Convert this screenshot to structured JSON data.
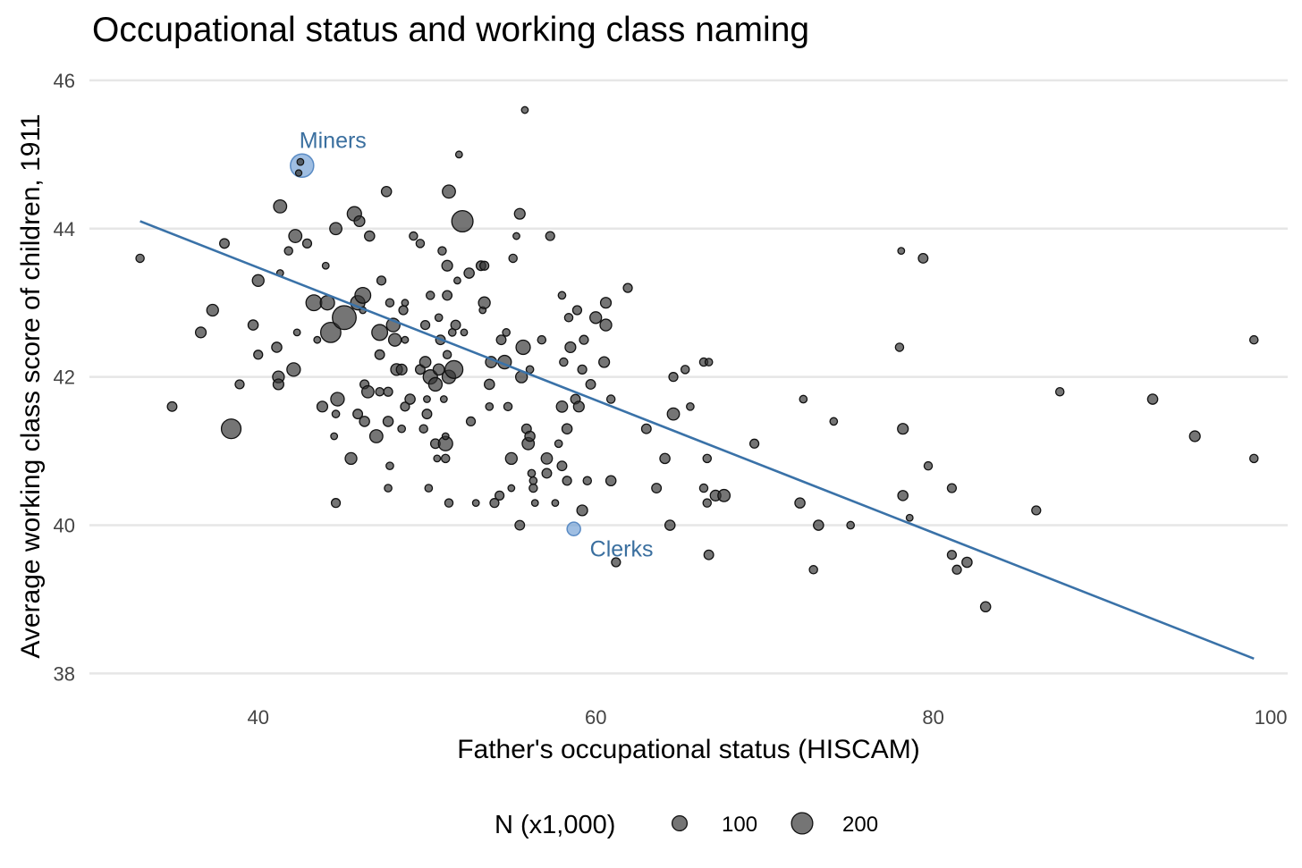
{
  "chart_data": {
    "type": "scatter",
    "title": "Occupational status and working class naming",
    "xlabel": "Father's occupational status (HISCAM)",
    "ylabel": "Average working class score of children, 1911",
    "xlim": [
      30,
      101
    ],
    "ylim": [
      37.8,
      46.3
    ],
    "x_ticks": [
      40,
      60,
      80,
      100
    ],
    "y_ticks": [
      38,
      40,
      42,
      44,
      46
    ],
    "grid": "horizontal major lines only",
    "point_color": "#333333",
    "highlight_color": "#6b9bd2",
    "line_color": "#3a72a8",
    "fit_line": {
      "x": [
        33,
        99
      ],
      "y": [
        44.1,
        38.2
      ]
    },
    "legend": {
      "title": "N (x1,000)",
      "placement": "bottom",
      "entries": [
        {
          "label": "100",
          "n": 100
        },
        {
          "label": "200",
          "n": 200
        }
      ]
    },
    "highlighted": [
      {
        "label": "Miners",
        "x": 42.6,
        "y": 44.85,
        "n": 240
      },
      {
        "label": "Clerks",
        "x": 58.7,
        "y": 39.95,
        "n": 80
      }
    ],
    "points": [
      [
        33.0,
        43.6,
        30
      ],
      [
        34.9,
        41.6,
        40
      ],
      [
        36.6,
        42.6,
        50
      ],
      [
        37.3,
        42.9,
        60
      ],
      [
        38.0,
        43.8,
        40
      ],
      [
        38.4,
        41.3,
        170
      ],
      [
        38.9,
        41.9,
        35
      ],
      [
        39.7,
        42.7,
        45
      ],
      [
        40.0,
        43.3,
        60
      ],
      [
        40.0,
        42.3,
        35
      ],
      [
        41.1,
        42.4,
        45
      ],
      [
        41.2,
        42.0,
        60
      ],
      [
        41.2,
        41.9,
        50
      ],
      [
        41.3,
        44.3,
        75
      ],
      [
        41.3,
        43.4,
        20
      ],
      [
        41.8,
        43.7,
        30
      ],
      [
        42.1,
        42.1,
        80
      ],
      [
        42.2,
        43.9,
        75
      ],
      [
        42.3,
        42.6,
        20
      ],
      [
        42.9,
        43.8,
        35
      ],
      [
        43.3,
        43.0,
        110
      ],
      [
        43.5,
        42.5,
        20
      ],
      [
        43.8,
        41.6,
        50
      ],
      [
        44.0,
        43.5,
        20
      ],
      [
        44.1,
        43.0,
        90
      ],
      [
        44.3,
        42.6,
        180
      ],
      [
        44.5,
        41.2,
        20
      ],
      [
        44.6,
        41.5,
        25
      ],
      [
        44.6,
        40.3,
        35
      ],
      [
        44.6,
        44.0,
        65
      ],
      [
        44.7,
        41.7,
        80
      ],
      [
        45.1,
        42.8,
        250
      ],
      [
        45.5,
        40.9,
        60
      ],
      [
        45.7,
        44.2,
        90
      ],
      [
        45.9,
        41.5,
        40
      ],
      [
        45.9,
        43.0,
        90
      ],
      [
        46.0,
        44.1,
        50
      ],
      [
        46.2,
        43.1,
        110
      ],
      [
        46.2,
        42.9,
        20
      ],
      [
        46.3,
        41.4,
        45
      ],
      [
        46.3,
        41.9,
        35
      ],
      [
        46.5,
        41.8,
        65
      ],
      [
        46.6,
        43.9,
        45
      ],
      [
        47.0,
        41.2,
        75
      ],
      [
        47.2,
        42.6,
        110
      ],
      [
        47.2,
        42.3,
        40
      ],
      [
        47.2,
        41.8,
        30
      ],
      [
        47.3,
        43.3,
        35
      ],
      [
        47.6,
        44.5,
        45
      ],
      [
        47.7,
        41.8,
        35
      ],
      [
        47.7,
        40.5,
        25
      ],
      [
        47.7,
        41.4,
        45
      ],
      [
        47.8,
        43.0,
        30
      ],
      [
        47.8,
        40.8,
        25
      ],
      [
        48.0,
        42.7,
        80
      ],
      [
        48.1,
        42.5,
        70
      ],
      [
        48.2,
        42.1,
        60
      ],
      [
        48.5,
        42.1,
        50
      ],
      [
        48.5,
        41.3,
        25
      ],
      [
        48.6,
        42.9,
        35
      ],
      [
        48.7,
        43.0,
        20
      ],
      [
        48.7,
        42.5,
        20
      ],
      [
        48.7,
        41.6,
        35
      ],
      [
        49.0,
        41.7,
        45
      ],
      [
        49.2,
        43.9,
        30
      ],
      [
        49.6,
        42.1,
        40
      ],
      [
        49.6,
        43.8,
        30
      ],
      [
        49.8,
        41.3,
        30
      ],
      [
        49.9,
        42.2,
        55
      ],
      [
        49.9,
        42.7,
        35
      ],
      [
        50.0,
        41.5,
        40
      ],
      [
        50.0,
        41.7,
        20
      ],
      [
        50.1,
        40.5,
        25
      ],
      [
        50.2,
        42.0,
        90
      ],
      [
        50.2,
        43.1,
        30
      ],
      [
        50.5,
        41.9,
        80
      ],
      [
        50.5,
        41.1,
        40
      ],
      [
        50.6,
        40.9,
        20
      ],
      [
        50.7,
        42.1,
        55
      ],
      [
        50.7,
        42.8,
        25
      ],
      [
        50.8,
        42.5,
        40
      ],
      [
        50.9,
        43.7,
        30
      ],
      [
        51.0,
        41.7,
        20
      ],
      [
        51.1,
        41.1,
        90
      ],
      [
        51.1,
        40.9,
        30
      ],
      [
        51.1,
        41.2,
        20
      ],
      [
        51.2,
        43.5,
        50
      ],
      [
        51.2,
        43.1,
        40
      ],
      [
        51.2,
        42.3,
        30
      ],
      [
        51.3,
        42.0,
        80
      ],
      [
        51.3,
        44.5,
        75
      ],
      [
        51.3,
        40.3,
        30
      ],
      [
        51.5,
        42.6,
        25
      ],
      [
        51.6,
        42.1,
        140
      ],
      [
        51.7,
        42.7,
        40
      ],
      [
        51.8,
        43.3,
        20
      ],
      [
        51.9,
        45.0,
        20
      ],
      [
        52.1,
        44.1,
        200
      ],
      [
        52.2,
        42.6,
        20
      ],
      [
        52.5,
        43.4,
        45
      ],
      [
        52.6,
        41.4,
        35
      ],
      [
        52.9,
        40.3,
        20
      ],
      [
        53.2,
        43.5,
        40
      ],
      [
        53.3,
        42.9,
        20
      ],
      [
        53.4,
        43.0,
        60
      ],
      [
        53.4,
        43.5,
        35
      ],
      [
        53.7,
        41.9,
        45
      ],
      [
        53.7,
        41.6,
        25
      ],
      [
        53.8,
        42.2,
        55
      ],
      [
        54.0,
        40.3,
        35
      ],
      [
        54.3,
        40.4,
        35
      ],
      [
        54.4,
        42.5,
        40
      ],
      [
        54.6,
        42.2,
        80
      ],
      [
        54.7,
        42.6,
        25
      ],
      [
        54.8,
        41.6,
        30
      ],
      [
        55.0,
        40.9,
        60
      ],
      [
        55.0,
        40.5,
        20
      ],
      [
        55.1,
        43.6,
        30
      ],
      [
        55.3,
        43.9,
        20
      ],
      [
        55.5,
        44.2,
        50
      ],
      [
        55.5,
        40.0,
        40
      ],
      [
        55.6,
        42.0,
        60
      ],
      [
        55.7,
        42.4,
        90
      ],
      [
        55.8,
        45.6,
        20
      ],
      [
        55.9,
        41.3,
        40
      ],
      [
        56.0,
        41.1,
        65
      ],
      [
        56.1,
        41.2,
        45
      ],
      [
        56.1,
        42.1,
        25
      ],
      [
        56.2,
        40.7,
        25
      ],
      [
        56.3,
        40.6,
        25
      ],
      [
        56.3,
        40.5,
        30
      ],
      [
        56.4,
        40.3,
        20
      ],
      [
        56.8,
        42.5,
        30
      ],
      [
        57.1,
        40.9,
        55
      ],
      [
        57.1,
        40.7,
        40
      ],
      [
        57.3,
        43.9,
        35
      ],
      [
        57.6,
        40.3,
        20
      ],
      [
        57.8,
        41.1,
        25
      ],
      [
        58.0,
        41.6,
        55
      ],
      [
        58.0,
        43.1,
        25
      ],
      [
        58.0,
        40.8,
        40
      ],
      [
        58.1,
        42.2,
        30
      ],
      [
        58.3,
        41.3,
        45
      ],
      [
        58.3,
        40.6,
        35
      ],
      [
        58.4,
        42.8,
        30
      ],
      [
        58.5,
        42.4,
        50
      ],
      [
        58.8,
        41.7,
        40
      ],
      [
        58.9,
        42.9,
        35
      ],
      [
        59.0,
        41.6,
        50
      ],
      [
        59.2,
        42.1,
        35
      ],
      [
        59.2,
        40.2,
        50
      ],
      [
        59.3,
        42.5,
        35
      ],
      [
        59.5,
        40.6,
        30
      ],
      [
        59.7,
        41.9,
        40
      ],
      [
        60.0,
        42.8,
        60
      ],
      [
        60.5,
        42.2,
        50
      ],
      [
        60.6,
        42.7,
        60
      ],
      [
        60.6,
        43.0,
        50
      ],
      [
        60.9,
        41.7,
        30
      ],
      [
        60.9,
        40.6,
        45
      ],
      [
        61.2,
        39.5,
        35
      ],
      [
        61.9,
        43.2,
        35
      ],
      [
        63.0,
        41.3,
        40
      ],
      [
        63.6,
        40.5,
        40
      ],
      [
        64.1,
        40.9,
        45
      ],
      [
        64.4,
        40.0,
        45
      ],
      [
        64.6,
        41.5,
        65
      ],
      [
        64.6,
        42.0,
        35
      ],
      [
        65.3,
        42.1,
        30
      ],
      [
        65.6,
        41.6,
        25
      ],
      [
        66.4,
        42.2,
        30
      ],
      [
        66.4,
        40.5,
        30
      ],
      [
        66.6,
        40.9,
        30
      ],
      [
        66.6,
        40.3,
        30
      ],
      [
        66.7,
        42.2,
        25
      ],
      [
        66.7,
        39.6,
        40
      ],
      [
        67.1,
        40.4,
        50
      ],
      [
        67.6,
        40.4,
        65
      ],
      [
        69.4,
        41.1,
        35
      ],
      [
        72.1,
        40.3,
        45
      ],
      [
        72.3,
        41.7,
        25
      ],
      [
        72.9,
        39.4,
        30
      ],
      [
        73.2,
        40.0,
        45
      ],
      [
        74.1,
        41.4,
        25
      ],
      [
        75.1,
        40.0,
        25
      ],
      [
        78.0,
        42.4,
        30
      ],
      [
        78.1,
        43.7,
        20
      ],
      [
        78.2,
        41.3,
        50
      ],
      [
        78.2,
        40.4,
        45
      ],
      [
        78.6,
        40.1,
        20
      ],
      [
        79.4,
        43.6,
        40
      ],
      [
        79.7,
        40.8,
        30
      ],
      [
        81.1,
        40.5,
        35
      ],
      [
        81.1,
        39.6,
        35
      ],
      [
        81.4,
        39.4,
        35
      ],
      [
        82.0,
        39.5,
        45
      ],
      [
        83.1,
        38.9,
        45
      ],
      [
        86.1,
        40.2,
        35
      ],
      [
        87.5,
        41.8,
        30
      ],
      [
        93.0,
        41.7,
        45
      ],
      [
        95.5,
        41.2,
        50
      ],
      [
        99.0,
        42.5,
        30
      ],
      [
        99.0,
        40.9,
        30
      ]
    ]
  }
}
